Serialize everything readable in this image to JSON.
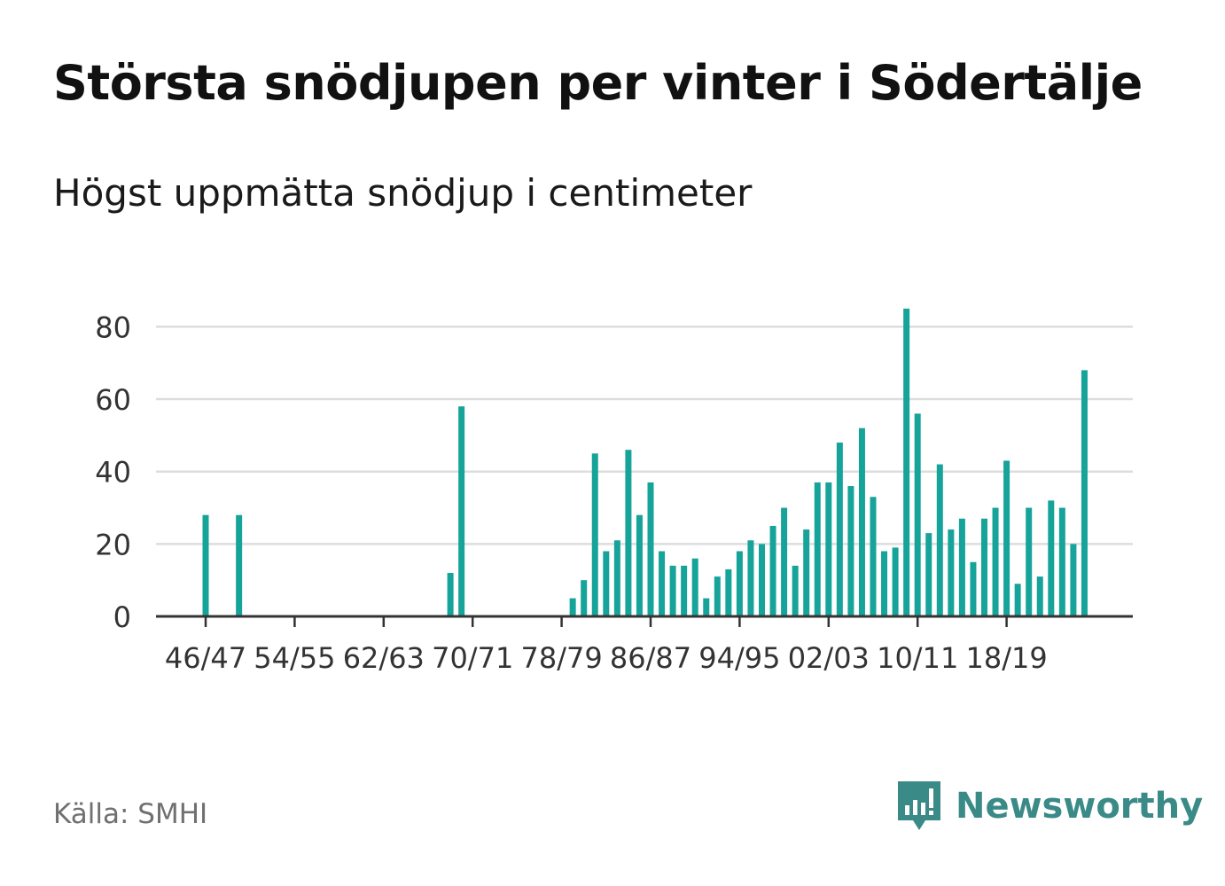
{
  "title": "Största snödjupen per vinter i Södertälje",
  "subtitle": "Högst uppmätta snödjup i centimeter",
  "source": "Källa: SMHI",
  "brand": {
    "name": "Newsworthy",
    "icon": "newsworthy-logo-icon"
  },
  "colors": {
    "bar": "#16a39a",
    "grid": "#dddddd",
    "axis": "#333333",
    "brand": "#3a8a87"
  },
  "chart_data": {
    "type": "bar",
    "title": "Största snödjupen per vinter i Södertälje",
    "ylabel": "Högst uppmätta snödjup i centimeter",
    "xlabel": "",
    "ylim": [
      0,
      85
    ],
    "yticks": [
      0,
      20,
      40,
      60,
      80
    ],
    "grid": true,
    "start_year": 1946,
    "xtick_labels": [
      {
        "index": 0,
        "label": "46/47"
      },
      {
        "index": 8,
        "label": "54/55"
      },
      {
        "index": 16,
        "label": "62/63"
      },
      {
        "index": 24,
        "label": "70/71"
      },
      {
        "index": 32,
        "label": "78/79"
      },
      {
        "index": 40,
        "label": "86/87"
      },
      {
        "index": 48,
        "label": "94/95"
      },
      {
        "index": 56,
        "label": "02/03"
      },
      {
        "index": 64,
        "label": "10/11"
      },
      {
        "index": 72,
        "label": "18/19"
      }
    ],
    "values": [
      28,
      0,
      0,
      28,
      0,
      0,
      0,
      0,
      0,
      0,
      0,
      0,
      0,
      0,
      0,
      0,
      0,
      0,
      0,
      0,
      0,
      0,
      12,
      58,
      0,
      0,
      0,
      0,
      0,
      0,
      0,
      0,
      0,
      5,
      10,
      45,
      18,
      21,
      46,
      28,
      37,
      18,
      14,
      14,
      16,
      5,
      11,
      13,
      18,
      21,
      20,
      25,
      30,
      14,
      24,
      37,
      37,
      48,
      36,
      52,
      33,
      18,
      19,
      85,
      56,
      23,
      42,
      24,
      27,
      15,
      27,
      30,
      43,
      9,
      30,
      11,
      32,
      30,
      20,
      68
    ]
  }
}
